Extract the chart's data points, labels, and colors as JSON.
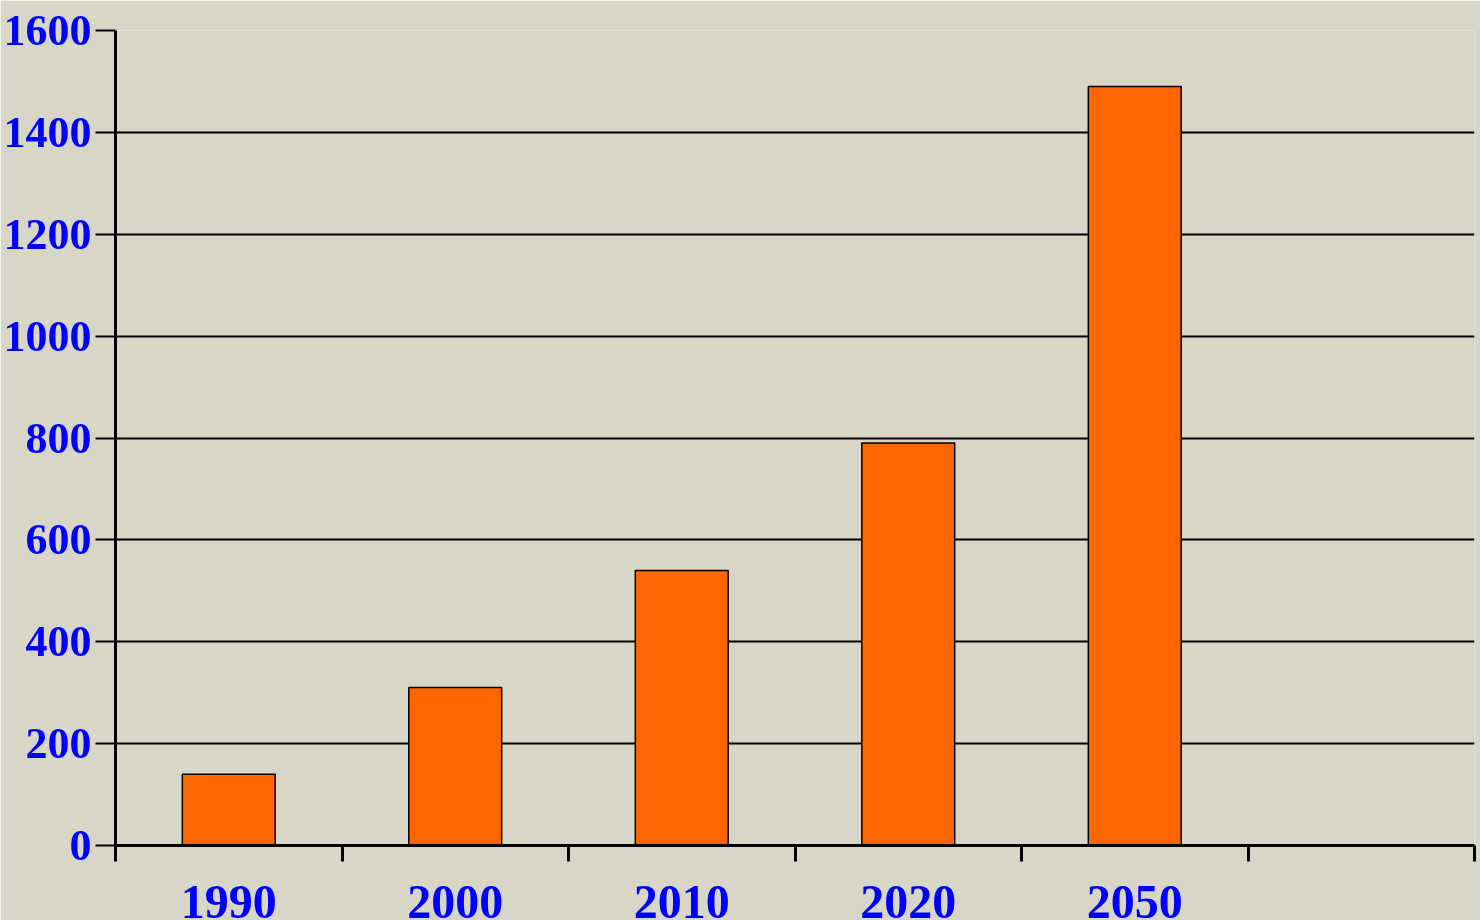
{
  "chart_data": {
    "type": "bar",
    "categories": [
      "1990",
      "2000",
      "2010",
      "2020",
      "2050",
      null
    ],
    "values": [
      140,
      310,
      540,
      790,
      1490,
      null
    ],
    "color": "#ff6600",
    "ylim": [
      0,
      1600
    ],
    "yticks": [
      0,
      200,
      400,
      600,
      800,
      1000,
      1200,
      1400,
      1600
    ],
    "grid": "y"
  }
}
